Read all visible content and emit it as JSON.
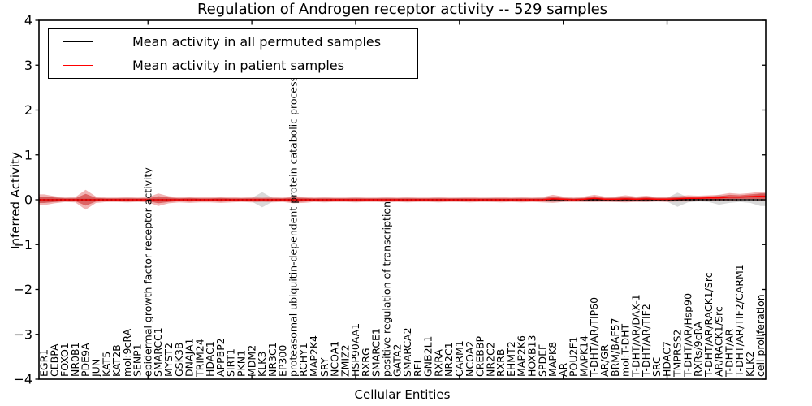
{
  "figure": {
    "background": "#ffffff"
  },
  "chart_data": {
    "type": "line",
    "title": "Regulation of Androgen receptor activity -- 529 samples",
    "xlabel": "Cellular Entities",
    "ylabel": "Inferred Activity",
    "ylim": [
      -4,
      4
    ],
    "yticks": [
      4,
      3,
      2,
      1,
      0,
      -1,
      -2,
      -3,
      -4
    ],
    "ytick_labels": [
      "4",
      "3",
      "2",
      "1",
      "0",
      "−1",
      "−2",
      "−3",
      "−4"
    ],
    "x_major_tick_indices": [
      10,
      20,
      30,
      40,
      50,
      60
    ],
    "grid": false,
    "legend_position": "upper left",
    "zero_line_style": "dotted",
    "categories": [
      "EGR1",
      "CEBPA",
      "FOXO1",
      "NR0B1",
      "PDE9A",
      "JUN",
      "KAT5",
      "KAT2B",
      "mol:9cRA",
      "SENP1",
      "epidermal growth factor receptor activity",
      "SMARCC1",
      "MYST2",
      "GSK3B",
      "DNAJA1",
      "TRIM24",
      "HDAC1",
      "APPBP2",
      "SIRT1",
      "PKN1",
      "MDM2",
      "KLK3",
      "NR3C1",
      "EP300",
      "proteasomal ubiquitin-dependent protein catabolic process",
      "RCHY1",
      "MAP2K4",
      "SRY",
      "NCOA1",
      "ZMIZ2",
      "HSP90AA1",
      "RXRG",
      "SMARCE1",
      "positive regulation of transcription",
      "GATA2",
      "SMARCA2",
      "REL",
      "GNB2L1",
      "RXRA",
      "NR2C1",
      "CARM1",
      "NCOA2",
      "CREBBP",
      "NR2C2",
      "RXRB",
      "EHMT2",
      "MAP2K6",
      "HOXB13",
      "SPDEF",
      "MAPK8",
      "AR",
      "POU2F1",
      "MAPK14",
      "T-DHT/AR/TIP60",
      "AR/GR",
      "BRM/BAF57",
      "mol:T-DHT",
      "T-DHT/AR/DAX-1",
      "T-DHT/AR/TIF2",
      "SRC",
      "HDAC7",
      "TMPRSS2",
      "T-DHT/AR/Hsp90",
      "RXRs/9cRA",
      "T-DHT/AR/RACK1/Src",
      "AR/RACK1/Src",
      "T-DHT/AR",
      "T-DHT/AR/TIF2/CARM1",
      "KLK2",
      "cell proliferation"
    ],
    "series": [
      {
        "name": "Mean activity in all permuted samples",
        "color": "#000000",
        "values": [
          0,
          0,
          0,
          0,
          0,
          0,
          0,
          0,
          0,
          0,
          0,
          0,
          0,
          0,
          0,
          0,
          0,
          0,
          0,
          0,
          0,
          0,
          0,
          0,
          0,
          0,
          0,
          0,
          0,
          0,
          0,
          0,
          0,
          0,
          0,
          0,
          0,
          0,
          0,
          0,
          0,
          0,
          0,
          0,
          0,
          0,
          0,
          0,
          0,
          0,
          0,
          0,
          0,
          0,
          0,
          0,
          0,
          0,
          0,
          0,
          0,
          0,
          0,
          0,
          0,
          0,
          0,
          0,
          0,
          0
        ],
        "band": {
          "color": "#b4b4b4",
          "opacity": 0.5,
          "halfwidths": [
            0.07,
            0.05,
            0.04,
            0.04,
            0.04,
            0.04,
            0.03,
            0.03,
            0.04,
            0.03,
            0.04,
            0.04,
            0.04,
            0.03,
            0.04,
            0.03,
            0.03,
            0.04,
            0.03,
            0.03,
            0.04,
            0.17,
            0.04,
            0.03,
            0.05,
            0.04,
            0.03,
            0.04,
            0.03,
            0.03,
            0.04,
            0.03,
            0.03,
            0.04,
            0.03,
            0.04,
            0.03,
            0.03,
            0.04,
            0.03,
            0.04,
            0.03,
            0.03,
            0.04,
            0.03,
            0.03,
            0.04,
            0.03,
            0.04,
            0.05,
            0.04,
            0.03,
            0.04,
            0.04,
            0.03,
            0.05,
            0.04,
            0.04,
            0.05,
            0.04,
            0.04,
            0.16,
            0.06,
            0.04,
            0.05,
            0.11,
            0.07,
            0.05,
            0.07,
            0.14
          ]
        }
      },
      {
        "name": "Mean activity in patient samples",
        "color": "#ff0000",
        "values": [
          0,
          0,
          0,
          0,
          0,
          0,
          0,
          0,
          0,
          0,
          0,
          0,
          0,
          0,
          0,
          0,
          0,
          0,
          0,
          0,
          0,
          0,
          0,
          0,
          0,
          0,
          0,
          0,
          0,
          0,
          0,
          0,
          0,
          0,
          0,
          0,
          0,
          0,
          0,
          0,
          0,
          0,
          0,
          0,
          0,
          0,
          0,
          0,
          0,
          0.02,
          0.01,
          0,
          0.01,
          0.03,
          0.01,
          0.01,
          0.02,
          0.01,
          0.02,
          0.01,
          0.01,
          0.02,
          0.03,
          0.03,
          0.04,
          0.04,
          0.06,
          0.06,
          0.07,
          0.08
        ],
        "band_outer": {
          "color": "#dd4444",
          "opacity": 0.4,
          "halfwidths": [
            0.12,
            0.08,
            0.05,
            0.06,
            0.22,
            0.07,
            0.05,
            0.05,
            0.06,
            0.05,
            0.06,
            0.14,
            0.08,
            0.06,
            0.07,
            0.06,
            0.06,
            0.07,
            0.06,
            0.05,
            0.06,
            0.05,
            0.06,
            0.05,
            0.08,
            0.07,
            0.05,
            0.06,
            0.05,
            0.05,
            0.06,
            0.05,
            0.05,
            0.06,
            0.05,
            0.06,
            0.05,
            0.05,
            0.06,
            0.05,
            0.05,
            0.06,
            0.05,
            0.05,
            0.06,
            0.05,
            0.06,
            0.05,
            0.06,
            0.09,
            0.06,
            0.05,
            0.06,
            0.08,
            0.06,
            0.06,
            0.08,
            0.06,
            0.07,
            0.05,
            0.06,
            0.06,
            0.07,
            0.06,
            0.06,
            0.07,
            0.09,
            0.07,
            0.08,
            0.1
          ]
        },
        "band_inner": {
          "color": "#cc2222",
          "opacity": 0.55,
          "halfwidths": [
            0.07,
            0.05,
            0.03,
            0.03,
            0.13,
            0.04,
            0.03,
            0.03,
            0.03,
            0.03,
            0.03,
            0.08,
            0.05,
            0.03,
            0.04,
            0.03,
            0.03,
            0.04,
            0.03,
            0.03,
            0.03,
            0.03,
            0.03,
            0.03,
            0.05,
            0.04,
            0.03,
            0.03,
            0.03,
            0.03,
            0.03,
            0.03,
            0.03,
            0.03,
            0.03,
            0.03,
            0.03,
            0.03,
            0.03,
            0.03,
            0.03,
            0.03,
            0.03,
            0.03,
            0.03,
            0.03,
            0.03,
            0.03,
            0.03,
            0.05,
            0.03,
            0.03,
            0.03,
            0.05,
            0.03,
            0.03,
            0.05,
            0.03,
            0.04,
            0.03,
            0.03,
            0.04,
            0.04,
            0.04,
            0.04,
            0.04,
            0.05,
            0.04,
            0.05,
            0.06
          ]
        }
      }
    ]
  }
}
